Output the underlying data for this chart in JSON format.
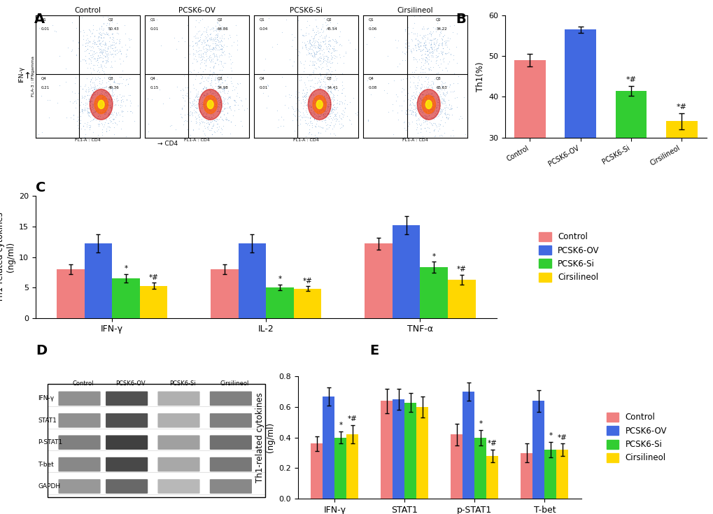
{
  "panel_B": {
    "categories": [
      "Control",
      "PCSK6-OV",
      "PCSK6-Si",
      "Cirsilineol"
    ],
    "values": [
      49.0,
      56.5,
      41.5,
      34.0
    ],
    "errors": [
      1.5,
      0.8,
      1.2,
      2.0
    ],
    "colors": [
      "#F08080",
      "#4169E1",
      "#32CD32",
      "#FFD700"
    ],
    "ylabel": "Th1(%)",
    "ylim": [
      30,
      60
    ],
    "yticks": [
      30,
      40,
      50,
      60
    ],
    "annotations": [
      "",
      "",
      "*#",
      "*#"
    ]
  },
  "panel_C": {
    "categories": [
      "IFN-γ",
      "IL-2",
      "TNF-α"
    ],
    "groups": [
      "Control",
      "PCSK6-OV",
      "PCSK6-Si",
      "Cirsilineol"
    ],
    "values": [
      [
        8.0,
        12.2,
        6.5,
        5.3
      ],
      [
        8.0,
        12.2,
        5.0,
        4.8
      ],
      [
        12.2,
        15.2,
        8.3,
        6.3
      ]
    ],
    "errors": [
      [
        0.8,
        1.5,
        0.7,
        0.5
      ],
      [
        0.8,
        1.5,
        0.5,
        0.4
      ],
      [
        1.0,
        1.5,
        0.9,
        0.8
      ]
    ],
    "colors": [
      "#F08080",
      "#4169E1",
      "#32CD32",
      "#FFD700"
    ],
    "ylabel": "Th1-related cytokines\n(ng/ml)",
    "ylim": [
      0,
      20
    ],
    "yticks": [
      0,
      5,
      10,
      15,
      20
    ],
    "annotations": [
      [
        "",
        "",
        "*",
        "*#"
      ],
      [
        "",
        "",
        "*",
        "*#"
      ],
      [
        "",
        "",
        "*",
        "*#"
      ]
    ]
  },
  "panel_E": {
    "categories": [
      "IFN-γ",
      "STAT1",
      "p-STAT1",
      "T-bet"
    ],
    "groups": [
      "Control",
      "PCSK6-OV",
      "PCSK6-Si",
      "Cirsilineol"
    ],
    "values": [
      [
        0.36,
        0.67,
        0.4,
        0.42
      ],
      [
        0.64,
        0.65,
        0.63,
        0.6
      ],
      [
        0.42,
        0.7,
        0.4,
        0.28
      ],
      [
        0.3,
        0.64,
        0.32,
        0.32
      ]
    ],
    "errors": [
      [
        0.05,
        0.06,
        0.04,
        0.06
      ],
      [
        0.08,
        0.07,
        0.06,
        0.07
      ],
      [
        0.07,
        0.06,
        0.05,
        0.04
      ],
      [
        0.06,
        0.07,
        0.05,
        0.04
      ]
    ],
    "colors": [
      "#F08080",
      "#4169E1",
      "#32CD32",
      "#FFD700"
    ],
    "ylabel": "Th1-related cytokines\n(ng/ml)",
    "ylim": [
      0,
      0.8
    ],
    "yticks": [
      0.0,
      0.2,
      0.4,
      0.6,
      0.8
    ],
    "annotations": [
      [
        "",
        "",
        "*",
        "*#"
      ],
      [
        "",
        "",
        "",
        ""
      ],
      [
        "",
        "",
        "*",
        "*#"
      ],
      [
        "",
        "",
        "*",
        "*#"
      ]
    ]
  },
  "legend_labels": [
    "Control",
    "PCSK6-OV",
    "PCSK6-Si",
    "Cirsilineol"
  ],
  "legend_colors": [
    "#F08080",
    "#4169E1",
    "#32CD32",
    "#FFD700"
  ],
  "panel_A_labels": [
    "Control",
    "PCSK6-OV",
    "PCSK6-Si",
    "Cirsilineol"
  ],
  "panel_A_quadrants": [
    {
      "Q1": "0.01",
      "Q2": "50.43",
      "Q3": "49.36",
      "Q4": "0.21"
    },
    {
      "Q1": "0.01",
      "Q2": "64.86",
      "Q3": "34.98",
      "Q4": "0.15"
    },
    {
      "Q1": "0.04",
      "Q2": "45.54",
      "Q3": "54.41",
      "Q4": "0.01"
    },
    {
      "Q1": "0.06",
      "Q2": "34.22",
      "Q3": "65.63",
      "Q4": "0.08"
    }
  ],
  "panel_D_labels": [
    "Control",
    "PCSK6-OV",
    "PCSK6-Si",
    "Cirsilineol"
  ],
  "panel_D_rows": [
    "IFN-γ",
    "STAT1",
    "P-STAT1",
    "T-bet",
    "GAPDH"
  ],
  "panel_D_band_colors": [
    [
      "#909090",
      "#505050",
      "#B0B0B0",
      "#808080"
    ],
    [
      "#909090",
      "#505050",
      "#B0B0B0",
      "#808080"
    ],
    [
      "#808080",
      "#404040",
      "#A0A0A0",
      "#707070"
    ],
    [
      "#888888",
      "#484848",
      "#A8A8A8",
      "#787878"
    ],
    [
      "#989898",
      "#686868",
      "#B8B8B8",
      "#888888"
    ]
  ],
  "background_color": "#FFFFFF"
}
